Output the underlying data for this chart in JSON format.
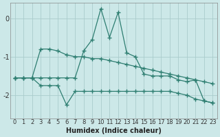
{
  "xlabel": "Humidex (Indice chaleur)",
  "xlim": [
    -0.5,
    23.5
  ],
  "ylim": [
    -2.6,
    0.4
  ],
  "bg_color": "#cce8e8",
  "grid_color": "#aacccc",
  "line_color": "#2d7d70",
  "series": [
    {
      "x": [
        0,
        1,
        2,
        3,
        4,
        5,
        6,
        7,
        8,
        9,
        10,
        11,
        12,
        13,
        14,
        15,
        16,
        17,
        18,
        19,
        20,
        21,
        22,
        23
      ],
      "y": [
        -1.55,
        -1.55,
        -1.55,
        -1.55,
        -1.55,
        -1.55,
        -1.55,
        -1.55,
        -0.85,
        -0.55,
        0.25,
        -0.5,
        0.15,
        -0.9,
        -1.0,
        -1.45,
        -1.5,
        -1.5,
        -1.5,
        -1.6,
        -1.65,
        -1.6,
        -2.15,
        -2.2
      ]
    },
    {
      "x": [
        0,
        1,
        2,
        3,
        4,
        5,
        6,
        7,
        8,
        9,
        10,
        11,
        12,
        13,
        14,
        15,
        16,
        17,
        18,
        19,
        20,
        21,
        22,
        23
      ],
      "y": [
        -1.55,
        -1.55,
        -1.55,
        -0.8,
        -0.8,
        -0.85,
        -0.95,
        -1.0,
        -1.0,
        -1.05,
        -1.05,
        -1.1,
        -1.15,
        -1.2,
        -1.25,
        -1.3,
        -1.35,
        -1.4,
        -1.45,
        -1.5,
        -1.55,
        -1.6,
        -1.65,
        -1.7
      ]
    },
    {
      "x": [
        0,
        1,
        2,
        3,
        4,
        5,
        6,
        7,
        8,
        9,
        10,
        11,
        12,
        13,
        14,
        15,
        16,
        17,
        18,
        19,
        20,
        21,
        22,
        23
      ],
      "y": [
        -1.55,
        -1.55,
        -1.55,
        -1.75,
        -1.75,
        -1.75,
        -2.25,
        -1.9,
        -1.9,
        -1.9,
        -1.9,
        -1.9,
        -1.9,
        -1.9,
        -1.9,
        -1.9,
        -1.9,
        -1.9,
        -1.9,
        -1.95,
        -2.0,
        -2.1,
        -2.15,
        -2.2
      ]
    }
  ],
  "yticks": [
    0,
    -1,
    -2
  ],
  "xtick_labels": [
    "0",
    "1",
    "2",
    "3",
    "4",
    "5",
    "6",
    "7",
    "8",
    "9",
    "10",
    "11",
    "12",
    "13",
    "14",
    "15",
    "16",
    "17",
    "18",
    "19",
    "20",
    "21",
    "22",
    "23"
  ],
  "marker": "+",
  "markersize": 4,
  "linewidth": 0.9,
  "tick_fontsize": 6,
  "xlabel_fontsize": 7,
  "ytick_fontsize": 7
}
